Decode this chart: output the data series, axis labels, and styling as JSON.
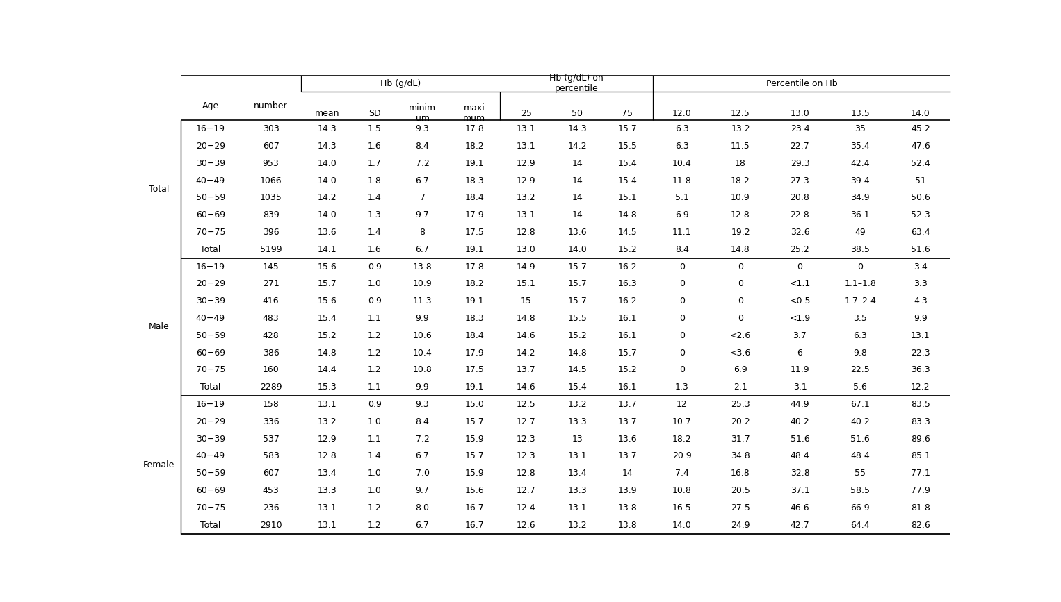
{
  "groups": [
    "Total",
    "Male",
    "Female"
  ],
  "rows": {
    "Total": [
      [
        "16−19",
        "303",
        "14.3",
        "1.5",
        "9.3",
        "17.8",
        "13.1",
        "14.3",
        "15.7",
        "6.3",
        "13.2",
        "23.4",
        "35",
        "45.2"
      ],
      [
        "20−29",
        "607",
        "14.3",
        "1.6",
        "8.4",
        "18.2",
        "13.1",
        "14.2",
        "15.5",
        "6.3",
        "11.5",
        "22.7",
        "35.4",
        "47.6"
      ],
      [
        "30−39",
        "953",
        "14.0",
        "1.7",
        "7.2",
        "19.1",
        "12.9",
        "14",
        "15.4",
        "10.4",
        "18",
        "29.3",
        "42.4",
        "52.4"
      ],
      [
        "40−49",
        "1066",
        "14.0",
        "1.8",
        "6.7",
        "18.3",
        "12.9",
        "14",
        "15.4",
        "11.8",
        "18.2",
        "27.3",
        "39.4",
        "51"
      ],
      [
        "50−59",
        "1035",
        "14.2",
        "1.4",
        "7",
        "18.4",
        "13.2",
        "14",
        "15.1",
        "5.1",
        "10.9",
        "20.8",
        "34.9",
        "50.6"
      ],
      [
        "60−69",
        "839",
        "14.0",
        "1.3",
        "9.7",
        "17.9",
        "13.1",
        "14",
        "14.8",
        "6.9",
        "12.8",
        "22.8",
        "36.1",
        "52.3"
      ],
      [
        "70−75",
        "396",
        "13.6",
        "1.4",
        "8",
        "17.5",
        "12.8",
        "13.6",
        "14.5",
        "11.1",
        "19.2",
        "32.6",
        "49",
        "63.4"
      ],
      [
        "Total",
        "5199",
        "14.1",
        "1.6",
        "6.7",
        "19.1",
        "13.0",
        "14.0",
        "15.2",
        "8.4",
        "14.8",
        "25.2",
        "38.5",
        "51.6"
      ]
    ],
    "Male": [
      [
        "16−19",
        "145",
        "15.6",
        "0.9",
        "13.8",
        "17.8",
        "14.9",
        "15.7",
        "16.2",
        "0",
        "0",
        "0",
        "0",
        "3.4"
      ],
      [
        "20−29",
        "271",
        "15.7",
        "1.0",
        "10.9",
        "18.2",
        "15.1",
        "15.7",
        "16.3",
        "0",
        "0",
        "<1.1",
        "1.1–1.8",
        "3.3"
      ],
      [
        "30−39",
        "416",
        "15.6",
        "0.9",
        "11.3",
        "19.1",
        "15",
        "15.7",
        "16.2",
        "0",
        "0",
        "<0.5",
        "1.7–2.4",
        "4.3"
      ],
      [
        "40−49",
        "483",
        "15.4",
        "1.1",
        "9.9",
        "18.3",
        "14.8",
        "15.5",
        "16.1",
        "0",
        "0",
        "<1.9",
        "3.5",
        "9.9"
      ],
      [
        "50−59",
        "428",
        "15.2",
        "1.2",
        "10.6",
        "18.4",
        "14.6",
        "15.2",
        "16.1",
        "0",
        "<2.6",
        "3.7",
        "6.3",
        "13.1"
      ],
      [
        "60−69",
        "386",
        "14.8",
        "1.2",
        "10.4",
        "17.9",
        "14.2",
        "14.8",
        "15.7",
        "0",
        "<3.6",
        "6",
        "9.8",
        "22.3"
      ],
      [
        "70−75",
        "160",
        "14.4",
        "1.2",
        "10.8",
        "17.5",
        "13.7",
        "14.5",
        "15.2",
        "0",
        "6.9",
        "11.9",
        "22.5",
        "36.3"
      ],
      [
        "Total",
        "2289",
        "15.3",
        "1.1",
        "9.9",
        "19.1",
        "14.6",
        "15.4",
        "16.1",
        "1.3",
        "2.1",
        "3.1",
        "5.6",
        "12.2"
      ]
    ],
    "Female": [
      [
        "16−19",
        "158",
        "13.1",
        "0.9",
        "9.3",
        "15.0",
        "12.5",
        "13.2",
        "13.7",
        "12",
        "25.3",
        "44.9",
        "67.1",
        "83.5"
      ],
      [
        "20−29",
        "336",
        "13.2",
        "1.0",
        "8.4",
        "15.7",
        "12.7",
        "13.3",
        "13.7",
        "10.7",
        "20.2",
        "40.2",
        "40.2",
        "83.3"
      ],
      [
        "30−39",
        "537",
        "12.9",
        "1.1",
        "7.2",
        "15.9",
        "12.3",
        "13",
        "13.6",
        "18.2",
        "31.7",
        "51.6",
        "51.6",
        "89.6"
      ],
      [
        "40−49",
        "583",
        "12.8",
        "1.4",
        "6.7",
        "15.7",
        "12.3",
        "13.1",
        "13.7",
        "20.9",
        "34.8",
        "48.4",
        "48.4",
        "85.1"
      ],
      [
        "50−59",
        "607",
        "13.4",
        "1.0",
        "7.0",
        "15.9",
        "12.8",
        "13.4",
        "14",
        "7.4",
        "16.8",
        "32.8",
        "55",
        "77.1"
      ],
      [
        "60−69",
        "453",
        "13.3",
        "1.0",
        "9.7",
        "15.6",
        "12.7",
        "13.3",
        "13.9",
        "10.8",
        "20.5",
        "37.1",
        "58.5",
        "77.9"
      ],
      [
        "70−75",
        "236",
        "13.1",
        "1.2",
        "8.0",
        "16.7",
        "12.4",
        "13.1",
        "13.8",
        "16.5",
        "27.5",
        "46.6",
        "66.9",
        "81.8"
      ],
      [
        "Total",
        "2910",
        "13.1",
        "1.2",
        "6.7",
        "16.7",
        "12.6",
        "13.2",
        "13.8",
        "14.0",
        "24.9",
        "42.7",
        "64.4",
        "82.6"
      ]
    ]
  },
  "bg_color": "#ffffff",
  "text_color": "#000000",
  "line_color": "#000000",
  "font_size": 9.0,
  "header_font_size": 9.0
}
